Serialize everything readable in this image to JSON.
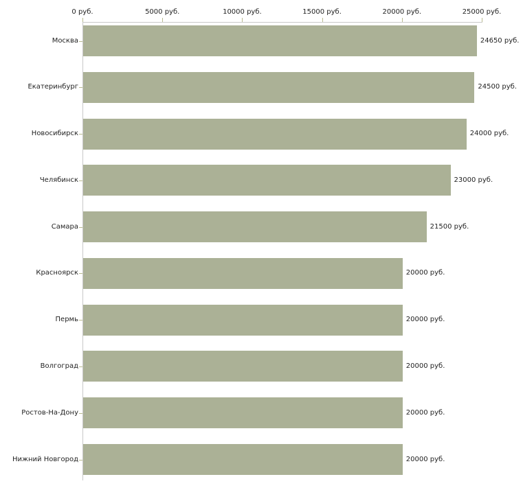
{
  "chart_data": {
    "type": "bar",
    "orientation": "horizontal",
    "title": "",
    "xlabel": "",
    "ylabel": "",
    "xlim": [
      0,
      25000
    ],
    "grid": false,
    "legend": false,
    "unit": "руб.",
    "x_ticks": [
      {
        "value": 0,
        "label": "0 руб."
      },
      {
        "value": 5000,
        "label": "5000 руб."
      },
      {
        "value": 10000,
        "label": "10000 руб."
      },
      {
        "value": 15000,
        "label": "15000 руб."
      },
      {
        "value": 20000,
        "label": "20000 руб."
      },
      {
        "value": 25000,
        "label": "25000 руб."
      }
    ],
    "categories": [
      "Москва",
      "Екатеринбург",
      "Новосибирск",
      "Челябинск",
      "Самара",
      "Красноярск",
      "Пермь",
      "Волгоград",
      "Ростов-На-Дону",
      "Нижний Новгород"
    ],
    "values": [
      24650,
      24500,
      24000,
      23000,
      21500,
      20000,
      20000,
      20000,
      20000,
      20000
    ],
    "value_labels": [
      "24650 руб.",
      "24500 руб.",
      "24000 руб.",
      "23000 руб.",
      "21500 руб.",
      "20000 руб.",
      "20000 руб.",
      "20000 руб.",
      "20000 руб.",
      "20000 руб."
    ],
    "colors": {
      "bar": "#abb196",
      "axis_line": "#c8c8c8",
      "tick_mark": "#b9ba90",
      "text": "#222222",
      "background": "#ffffff"
    }
  }
}
